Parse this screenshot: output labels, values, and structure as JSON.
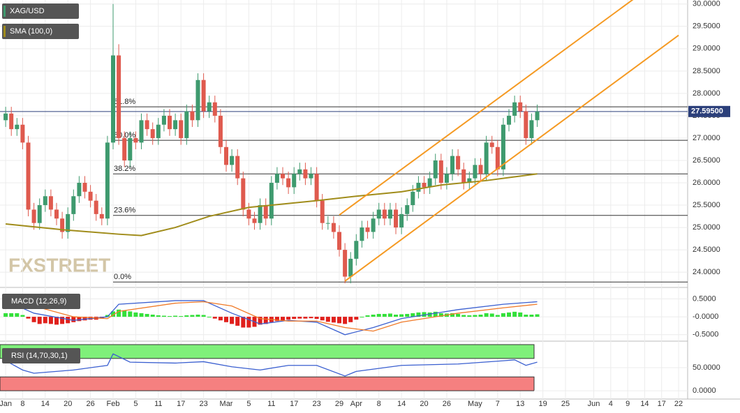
{
  "chart_data": {
    "type": "candlestick",
    "symbol": "XAG/USD",
    "watermark": "FXSTREET",
    "colors": {
      "up": "#3e9a6e",
      "down": "#df5a4e"
    },
    "candles": [
      [
        27.4,
        27.7,
        27.25,
        27.55
      ],
      [
        27.55,
        27.7,
        27.05,
        27.2
      ],
      [
        27.2,
        27.45,
        27.05,
        27.3
      ],
      [
        27.3,
        27.45,
        26.75,
        26.9
      ],
      [
        26.9,
        27.05,
        25.25,
        25.4
      ],
      [
        25.4,
        25.55,
        24.95,
        25.1
      ],
      [
        25.1,
        25.65,
        24.95,
        25.5
      ],
      [
        25.5,
        25.85,
        25.35,
        25.7
      ],
      [
        25.7,
        25.85,
        25.25,
        25.4
      ],
      [
        25.4,
        25.55,
        25.05,
        25.2
      ],
      [
        25.2,
        25.35,
        24.75,
        24.9
      ],
      [
        24.9,
        25.45,
        24.75,
        25.3
      ],
      [
        25.3,
        25.85,
        25.15,
        25.7
      ],
      [
        25.7,
        26.15,
        25.55,
        26.0
      ],
      [
        26.0,
        26.15,
        25.65,
        25.8
      ],
      [
        25.8,
        25.95,
        25.45,
        25.6
      ],
      [
        25.6,
        25.75,
        25.15,
        25.3
      ],
      [
        25.3,
        25.45,
        25.05,
        25.2
      ],
      [
        25.2,
        27.05,
        25.05,
        26.9
      ],
      [
        26.9,
        30.0,
        26.75,
        28.85
      ],
      [
        28.85,
        29.1,
        26.85,
        27.0
      ],
      [
        27.0,
        27.15,
        26.35,
        26.5
      ],
      [
        26.5,
        27.15,
        26.35,
        27.0
      ],
      [
        27.0,
        27.15,
        26.75,
        26.9
      ],
      [
        26.9,
        27.55,
        26.75,
        27.4
      ],
      [
        27.4,
        27.55,
        27.05,
        27.2
      ],
      [
        27.2,
        27.35,
        26.85,
        27.0
      ],
      [
        27.0,
        27.45,
        26.85,
        27.3
      ],
      [
        27.3,
        27.65,
        27.15,
        27.5
      ],
      [
        27.5,
        27.65,
        27.05,
        27.2
      ],
      [
        27.2,
        27.55,
        27.05,
        27.4
      ],
      [
        27.4,
        27.55,
        26.85,
        27.0
      ],
      [
        27.0,
        27.75,
        26.85,
        27.6
      ],
      [
        27.6,
        27.75,
        27.25,
        27.4
      ],
      [
        27.4,
        28.45,
        27.25,
        28.3
      ],
      [
        28.3,
        28.45,
        27.45,
        27.6
      ],
      [
        27.6,
        27.95,
        27.45,
        27.8
      ],
      [
        27.8,
        27.95,
        27.35,
        27.5
      ],
      [
        27.5,
        27.65,
        26.65,
        26.8
      ],
      [
        26.8,
        26.95,
        26.25,
        26.4
      ],
      [
        26.4,
        26.75,
        26.25,
        26.6
      ],
      [
        26.6,
        26.75,
        25.95,
        26.1
      ],
      [
        26.1,
        26.25,
        25.25,
        25.4
      ],
      [
        25.4,
        25.55,
        25.05,
        25.2
      ],
      [
        25.2,
        25.35,
        24.95,
        25.1
      ],
      [
        25.1,
        25.65,
        24.95,
        25.5
      ],
      [
        25.5,
        25.65,
        25.05,
        25.2
      ],
      [
        25.2,
        26.15,
        25.05,
        26.0
      ],
      [
        26.0,
        26.35,
        25.85,
        26.2
      ],
      [
        26.2,
        26.35,
        25.95,
        26.1
      ],
      [
        26.1,
        26.25,
        25.75,
        25.9
      ],
      [
        25.9,
        26.35,
        25.75,
        26.2
      ],
      [
        26.2,
        26.45,
        26.05,
        26.3
      ],
      [
        26.3,
        26.45,
        25.95,
        26.1
      ],
      [
        26.1,
        26.35,
        25.95,
        26.2
      ],
      [
        26.2,
        26.35,
        25.45,
        25.6
      ],
      [
        25.6,
        25.75,
        24.95,
        25.1
      ],
      [
        25.1,
        25.25,
        24.95,
        25.1
      ],
      [
        25.1,
        25.25,
        24.75,
        24.9
      ],
      [
        24.9,
        25.05,
        24.35,
        24.5
      ],
      [
        24.5,
        24.65,
        23.75,
        23.9
      ],
      [
        23.9,
        24.45,
        23.75,
        24.3
      ],
      [
        24.3,
        24.85,
        24.15,
        24.7
      ],
      [
        24.7,
        25.15,
        24.55,
        25.0
      ],
      [
        25.0,
        25.15,
        24.75,
        24.9
      ],
      [
        24.9,
        25.35,
        24.75,
        25.2
      ],
      [
        25.2,
        25.55,
        25.05,
        25.4
      ],
      [
        25.4,
        25.55,
        25.05,
        25.2
      ],
      [
        25.2,
        25.55,
        25.05,
        25.4
      ],
      [
        25.4,
        25.55,
        24.85,
        25.0
      ],
      [
        25.0,
        25.45,
        24.85,
        25.3
      ],
      [
        25.3,
        25.65,
        25.15,
        25.5
      ],
      [
        25.5,
        25.95,
        25.35,
        25.8
      ],
      [
        25.8,
        26.15,
        25.65,
        26.0
      ],
      [
        26.0,
        26.15,
        25.75,
        25.9
      ],
      [
        25.9,
        26.25,
        25.75,
        26.1
      ],
      [
        26.1,
        26.65,
        25.95,
        26.5
      ],
      [
        26.5,
        26.65,
        25.85,
        26.0
      ],
      [
        26.0,
        26.35,
        25.85,
        26.2
      ],
      [
        26.2,
        26.75,
        26.05,
        26.6
      ],
      [
        26.6,
        26.75,
        26.15,
        26.3
      ],
      [
        26.3,
        26.45,
        25.85,
        26.0
      ],
      [
        26.0,
        26.25,
        25.85,
        26.1
      ],
      [
        26.1,
        26.55,
        25.95,
        26.4
      ],
      [
        26.4,
        26.55,
        26.05,
        26.2
      ],
      [
        26.2,
        27.05,
        26.05,
        26.9
      ],
      [
        26.9,
        27.05,
        26.65,
        26.8
      ],
      [
        26.8,
        26.95,
        26.15,
        26.3
      ],
      [
        26.3,
        27.45,
        26.15,
        27.3
      ],
      [
        27.3,
        27.65,
        27.15,
        27.5
      ],
      [
        27.5,
        27.95,
        27.35,
        27.8
      ],
      [
        27.8,
        27.95,
        27.45,
        27.6
      ],
      [
        27.6,
        27.75,
        26.85,
        27.0
      ],
      [
        27.0,
        27.55,
        26.85,
        27.4
      ],
      [
        27.4,
        27.75,
        27.25,
        27.595
      ]
    ],
    "last_price": {
      "value": 27.595,
      "label": "27.59500"
    },
    "xlim": [
      -1,
      120.6
    ],
    "xticks": [
      {
        "value": 0,
        "label": "Jan"
      },
      {
        "value": 3,
        "label": "8"
      },
      {
        "value": 7,
        "label": "14"
      },
      {
        "value": 11,
        "label": "20"
      },
      {
        "value": 15,
        "label": "26"
      },
      {
        "value": 19,
        "label": "Feb"
      },
      {
        "value": 23,
        "label": "5"
      },
      {
        "value": 27,
        "label": "11"
      },
      {
        "value": 31,
        "label": "17"
      },
      {
        "value": 35,
        "label": "23"
      },
      {
        "value": 39,
        "label": "Mar"
      },
      {
        "value": 43,
        "label": "5"
      },
      {
        "value": 47,
        "label": "11"
      },
      {
        "value": 51,
        "label": "17"
      },
      {
        "value": 55,
        "label": "23"
      },
      {
        "value": 59,
        "label": "29"
      },
      {
        "value": 62,
        "label": "Apr"
      },
      {
        "value": 66,
        "label": "8"
      },
      {
        "value": 70,
        "label": "14"
      },
      {
        "value": 74,
        "label": "20"
      },
      {
        "value": 78,
        "label": "26"
      },
      {
        "value": 83,
        "label": "May"
      },
      {
        "value": 87,
        "label": "7"
      },
      {
        "value": 91,
        "label": "13"
      },
      {
        "value": 95,
        "label": "19"
      },
      {
        "value": 99,
        "label": "25"
      },
      {
        "value": 104,
        "label": "Jun"
      },
      {
        "value": 107,
        "label": "4"
      },
      {
        "value": 110,
        "label": "9"
      },
      {
        "value": 113,
        "label": "14"
      },
      {
        "value": 116,
        "label": "17"
      },
      {
        "value": 119,
        "label": "22"
      }
    ],
    "ylim": [
      23.69,
      30.09
    ],
    "yticks": [
      {
        "value": 24,
        "label": "24.0000"
      },
      {
        "value": 24.5,
        "label": "24.5000"
      },
      {
        "value": 25,
        "label": "25.0000"
      },
      {
        "value": 25.5,
        "label": "25.5000"
      },
      {
        "value": 26,
        "label": "26.0000"
      },
      {
        "value": 26.5,
        "label": "26.5000"
      },
      {
        "value": 27,
        "label": "27.0000"
      },
      {
        "value": 27.5,
        "label": "27.5000"
      },
      {
        "value": 28,
        "label": "28.0000"
      },
      {
        "value": 28.5,
        "label": "28.5000"
      },
      {
        "value": 29,
        "label": "29.0000"
      },
      {
        "value": 29.5,
        "label": "29.5000"
      },
      {
        "value": 30,
        "label": "30.0000"
      }
    ],
    "sma": {
      "name": "SMA (100,0)",
      "color": "#a08c1a",
      "x": [
        0,
        10,
        20,
        24,
        30,
        36,
        43,
        55,
        62,
        70,
        77,
        85,
        94
      ],
      "values": [
        25.08,
        24.95,
        24.85,
        24.82,
        25.0,
        25.25,
        25.45,
        25.6,
        25.7,
        25.8,
        25.95,
        26.05,
        26.2
      ]
    },
    "fib": [
      {
        "label": "61.8%",
        "value": 27.7
      },
      {
        "label": "50.0%",
        "value": 26.95
      },
      {
        "label": "38.2%",
        "value": 26.2
      },
      {
        "label": "23.6%",
        "value": 25.27
      },
      {
        "label": "0.0%",
        "value": 23.78
      }
    ],
    "channel": {
      "color": "#f59a23",
      "lines": [
        {
          "x": [
            59,
            112
          ],
          "values": [
            25.28,
            30.2
          ]
        },
        {
          "x": [
            60,
            119
          ],
          "values": [
            23.8,
            29.3
          ]
        }
      ]
    },
    "macd": {
      "name": "MACD (12,26,9)",
      "ylim": [
        -0.66,
        0.78
      ],
      "yticks": [
        {
          "value": 0.5,
          "label": "0.5000"
        },
        {
          "value": 0,
          "label": "-0.0000"
        },
        {
          "value": -0.5,
          "label": "-0.5000"
        }
      ],
      "line": {
        "color": "#3a5fd0",
        "x": [
          0,
          5,
          12,
          18,
          20,
          30,
          35,
          40,
          45,
          50,
          55,
          60,
          65,
          70,
          80,
          88,
          94
        ],
        "values": [
          0.45,
          0.1,
          -0.1,
          0.0,
          0.35,
          0.45,
          0.45,
          0.1,
          -0.2,
          -0.1,
          -0.15,
          -0.5,
          -0.3,
          -0.05,
          0.2,
          0.35,
          0.42
        ]
      },
      "signal": {
        "color": "#f07a28",
        "x": [
          0,
          5,
          12,
          18,
          20,
          30,
          35,
          40,
          45,
          50,
          55,
          60,
          65,
          70,
          80,
          88,
          94
        ],
        "values": [
          0.35,
          0.3,
          0.0,
          -0.05,
          0.15,
          0.38,
          0.42,
          0.3,
          -0.05,
          -0.12,
          -0.12,
          -0.3,
          -0.4,
          -0.15,
          0.1,
          0.25,
          0.35
        ]
      },
      "histogram": {
        "up": "#33e03a",
        "down": "#e0201c",
        "values": [
          0.1,
          0.1,
          0.1,
          0.05,
          -0.05,
          -0.15,
          -0.2,
          -0.18,
          -0.2,
          -0.22,
          -0.2,
          -0.18,
          -0.15,
          -0.12,
          -0.1,
          -0.08,
          -0.08,
          -0.05,
          0.05,
          0.15,
          0.2,
          0.18,
          0.15,
          0.12,
          0.1,
          0.08,
          0.06,
          0.04,
          0.03,
          0.02,
          0.03,
          0.02,
          0.04,
          0.05,
          0.06,
          0.05,
          0.0,
          -0.05,
          -0.1,
          -0.15,
          -0.2,
          -0.25,
          -0.3,
          -0.3,
          -0.28,
          -0.22,
          -0.2,
          -0.15,
          -0.12,
          -0.1,
          -0.08,
          -0.06,
          -0.05,
          -0.05,
          -0.04,
          -0.06,
          -0.1,
          -0.14,
          -0.16,
          -0.18,
          -0.2,
          -0.15,
          -0.08,
          0.0,
          0.04,
          0.06,
          0.08,
          0.08,
          0.09,
          0.06,
          0.07,
          0.08,
          0.1,
          0.12,
          0.13,
          0.12,
          0.14,
          0.1,
          0.09,
          0.1,
          0.08,
          0.05,
          0.04,
          0.05,
          0.06,
          0.1,
          0.09,
          0.05,
          0.1,
          0.12,
          0.14,
          0.12,
          0.06,
          0.06,
          0.07
        ]
      }
    },
    "rsi": {
      "name": "RSI (14,70,30,1)",
      "color": "#3a5fd0",
      "ylim": [
        -18,
        106
      ],
      "yticks": [
        {
          "value": 50,
          "label": "50.0000"
        },
        {
          "value": 0,
          "label": "0.0000"
        }
      ],
      "bands": [
        {
          "range": [
            70,
            100
          ],
          "color": "#7ff07a"
        },
        {
          "range": [
            0,
            30
          ],
          "color": "#f58080"
        }
      ],
      "x": [
        0,
        3,
        5,
        12,
        18,
        19,
        22,
        30,
        35,
        40,
        45,
        50,
        55,
        60,
        62,
        70,
        80,
        88,
        90,
        92,
        94
      ],
      "values": [
        65,
        45,
        38,
        45,
        55,
        80,
        62,
        60,
        63,
        52,
        45,
        55,
        55,
        32,
        42,
        55,
        58,
        65,
        67,
        55,
        62
      ]
    }
  }
}
